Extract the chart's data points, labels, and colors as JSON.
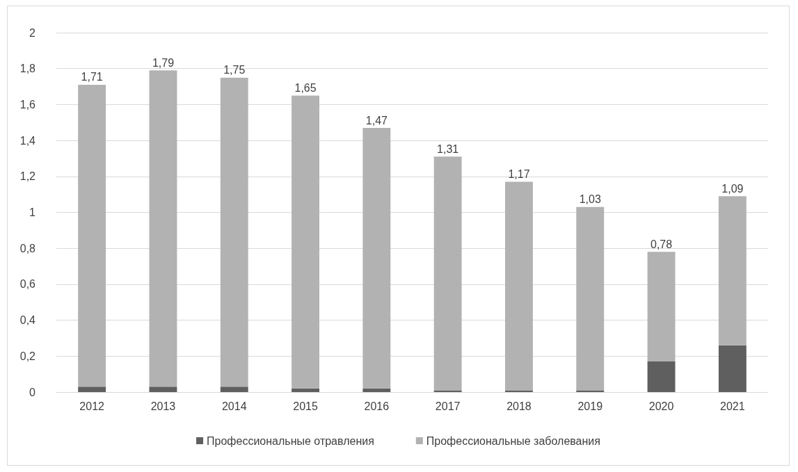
{
  "chart_data": {
    "type": "bar",
    "stacked": true,
    "categories": [
      "2012",
      "2013",
      "2014",
      "2015",
      "2016",
      "2017",
      "2018",
      "2019",
      "2020",
      "2021"
    ],
    "series": [
      {
        "name": "Профессиональные отравления",
        "color": "#5f5f5f",
        "values": [
          0.03,
          0.03,
          0.03,
          0.02,
          0.02,
          0.01,
          0.01,
          0.01,
          0.17,
          0.26
        ]
      },
      {
        "name": "Профессиональные заболевания",
        "color": "#b2b2b2",
        "values": [
          1.68,
          1.76,
          1.72,
          1.63,
          1.45,
          1.3,
          1.16,
          1.02,
          0.61,
          0.83
        ]
      }
    ],
    "totals": [
      "1,71",
      "1,79",
      "1,75",
      "1,65",
      "1,47",
      "1,31",
      "1,17",
      "1,03",
      "0,78",
      "1,09"
    ],
    "ylim": [
      0,
      2
    ],
    "yticks": [
      0,
      {
        "value": 0.2,
        "label": "0,2"
      },
      {
        "value": 0.4,
        "label": "0,4"
      },
      {
        "value": 0.6,
        "label": "0,6"
      },
      {
        "value": 0.8,
        "label": "0,8"
      },
      1,
      {
        "value": 1.2,
        "label": "1,2"
      },
      {
        "value": 1.4,
        "label": "1,4"
      },
      {
        "value": 1.6,
        "label": "1,6"
      },
      {
        "value": 1.8,
        "label": "1,8"
      },
      2
    ],
    "grid": "y",
    "legend": "bottom"
  }
}
